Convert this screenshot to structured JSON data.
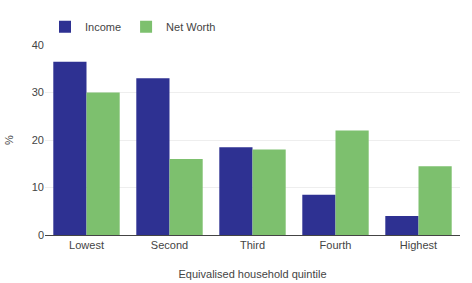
{
  "chart_data": {
    "type": "bar",
    "categories": [
      "Lowest",
      "Second",
      "Third",
      "Fourth",
      "Highest"
    ],
    "series": [
      {
        "name": "Income",
        "color": "#2e3192",
        "values": [
          36.5,
          33.0,
          18.5,
          8.5,
          4.0
        ]
      },
      {
        "name": "Net Worth",
        "color": "#7dc06e",
        "values": [
          30.0,
          16.0,
          18.0,
          22.0,
          14.5
        ]
      }
    ],
    "xlabel": "Equivalised household quintile",
    "ylabel": "%",
    "ylim": [
      0,
      40
    ],
    "yticks": [
      0,
      10,
      20,
      30,
      40
    ],
    "grid": true,
    "legend": "upper left"
  }
}
